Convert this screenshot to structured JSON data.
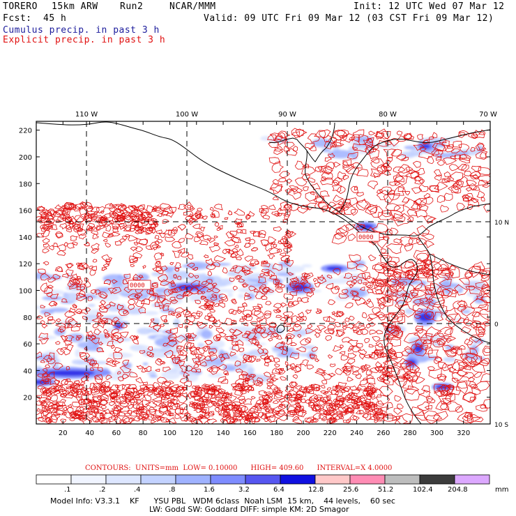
{
  "header": {
    "model": "TORERO",
    "resolution": "15km ARW",
    "run": "Run2",
    "org": "NCAR/MMM",
    "init": "Init: 12 UTC Wed 07 Mar 12",
    "fcst_label": "Fcst:",
    "fcst_value": "45 h",
    "valid": "Valid: 09 UTC Fri 09 Mar 12 (03 CST Fri 09 Mar 12)"
  },
  "legend": {
    "cumulus": "Cumulus precip. in past 3 h",
    "explicit": "Explicit precip. in past 3 h"
  },
  "map": {
    "lon_labels": [
      "110 W",
      "100 W",
      "90 W",
      "80 W",
      "70 W"
    ],
    "lat_labels": [
      "10 N",
      "0",
      "10 S"
    ],
    "x_ticks": [
      "20",
      "40",
      "60",
      "80",
      "100",
      "120",
      "140",
      "160",
      "180",
      "200",
      "220",
      "240",
      "260",
      "280",
      "300",
      "320"
    ],
    "y_ticks": [
      "20",
      "40",
      "60",
      "80",
      "100",
      "120",
      "140",
      "160",
      "180",
      "200",
      "220"
    ],
    "box_labels": [
      "0000",
      "0000"
    ]
  },
  "contours": {
    "title": "CONTOURS:",
    "units": "UNITS=mm",
    "low": "LOW= 0.10000",
    "high": "HIGH= 409.60",
    "interval": "INTERVAL=X 4.0000"
  },
  "colorbar": {
    "labels": [
      ".1",
      ".2",
      ".4",
      ".8",
      "1.6",
      "3.2",
      "6.4",
      "12.8",
      "25.6",
      "51.2",
      "102.4",
      "204.8"
    ],
    "unit": "mm",
    "colors": [
      "#ffffff",
      "#f0f4ff",
      "#dde6ff",
      "#c3d2ff",
      "#9fb2ff",
      "#7e8cff",
      "#5656f0",
      "#1010e0",
      "#ffc8c8",
      "#ff8cb4",
      "#bdbdbd",
      "#3c3c3c",
      "#dca8ff"
    ]
  },
  "model_info": {
    "line1": "Model Info: V3.3.1    KF      YSU PBL   WDM 6class  Noah LSM  15 km,    44 levels,    60 sec",
    "line2": "LW: Godd SW: Goddard DIFF: simple KM: 2D Smagor"
  }
}
